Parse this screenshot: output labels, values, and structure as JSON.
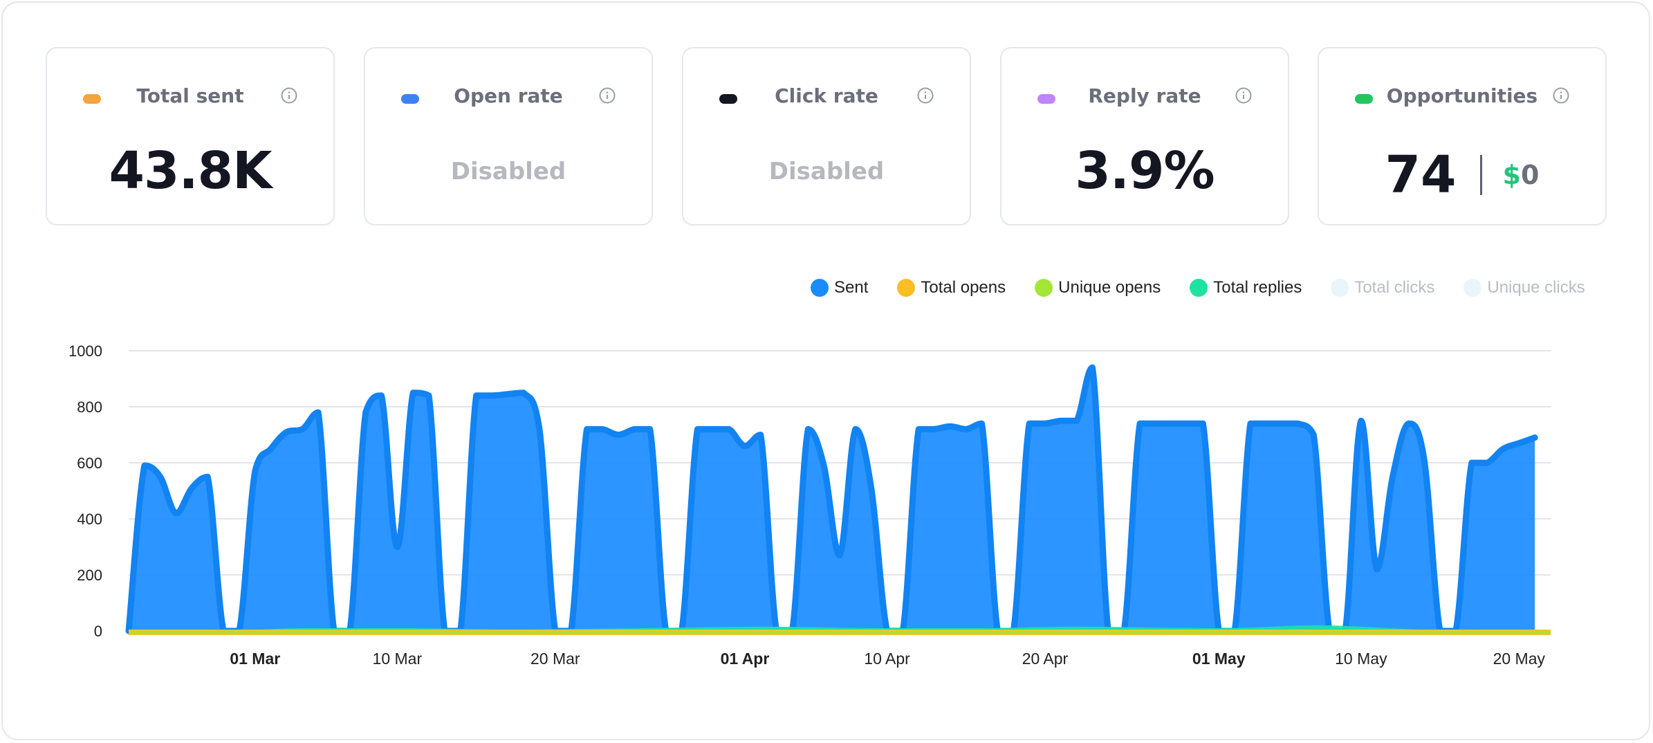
{
  "cards": [
    {
      "label": "Total sent",
      "value": "43.8K",
      "color": "#f5a33c",
      "state": "active"
    },
    {
      "label": "Open rate",
      "value": "Disabled",
      "color": "#3b82f6",
      "state": "disabled"
    },
    {
      "label": "Click rate",
      "value": "Disabled",
      "color": "#141722",
      "state": "disabled"
    },
    {
      "label": "Reply rate",
      "value": "3.9%",
      "color": "#c084fc",
      "state": "active"
    },
    {
      "label": "Opportunities",
      "value": "74",
      "currency": "$",
      "amount": "0",
      "color": "#22c55e",
      "state": "active"
    }
  ],
  "info_icon": "info-icon",
  "chart_data": {
    "type": "area",
    "legend_position": "top-right",
    "legend": [
      {
        "name": "Sent",
        "color": "#1a8cff",
        "visible": true
      },
      {
        "name": "Total opens",
        "color": "#fbbf24",
        "visible": true
      },
      {
        "name": "Unique opens",
        "color": "#a3e635",
        "visible": true
      },
      {
        "name": "Total replies",
        "color": "#1ee3a0",
        "visible": true
      },
      {
        "name": "Total clicks",
        "color": "#e8f6fb",
        "visible": false
      },
      {
        "name": "Unique clicks",
        "color": "#e8f6fb",
        "visible": false
      }
    ],
    "ylim": [
      0,
      1000
    ],
    "yticks": [
      0,
      200,
      400,
      600,
      800,
      1000
    ],
    "xlim": [
      "2024-02-22",
      "2024-05-22"
    ],
    "xticks": [
      {
        "date": "2024-03-01",
        "label": "01 Mar",
        "bold": true
      },
      {
        "date": "2024-03-10",
        "label": "10 Mar",
        "bold": false
      },
      {
        "date": "2024-03-20",
        "label": "20 Mar",
        "bold": false
      },
      {
        "date": "2024-04-01",
        "label": "01 Apr",
        "bold": true
      },
      {
        "date": "2024-04-10",
        "label": "10 Apr",
        "bold": false
      },
      {
        "date": "2024-04-20",
        "label": "20 Apr",
        "bold": false
      },
      {
        "date": "2024-05-01",
        "label": "01 May",
        "bold": true
      },
      {
        "date": "2024-05-10",
        "label": "10 May",
        "bold": false
      },
      {
        "date": "2024-05-20",
        "label": "20 May",
        "bold": false
      }
    ],
    "grid": true,
    "series": [
      {
        "name": "Sent",
        "color": "#1a8cff",
        "values": [
          [
            "2024-02-22",
            0
          ],
          [
            "2024-02-23",
            590
          ],
          [
            "2024-02-24",
            550
          ],
          [
            "2024-02-25",
            420
          ],
          [
            "2024-02-26",
            510
          ],
          [
            "2024-02-27",
            550
          ],
          [
            "2024-02-28",
            0
          ],
          [
            "2024-02-29",
            0
          ],
          [
            "2024-03-01",
            570
          ],
          [
            "2024-03-02",
            650
          ],
          [
            "2024-03-03",
            710
          ],
          [
            "2024-03-04",
            720
          ],
          [
            "2024-03-05",
            780
          ],
          [
            "2024-03-06",
            0
          ],
          [
            "2024-03-07",
            0
          ],
          [
            "2024-03-08",
            780
          ],
          [
            "2024-03-09",
            840
          ],
          [
            "2024-03-10",
            300
          ],
          [
            "2024-03-11",
            850
          ],
          [
            "2024-03-12",
            840
          ],
          [
            "2024-03-13",
            0
          ],
          [
            "2024-03-14",
            0
          ],
          [
            "2024-03-15",
            840
          ],
          [
            "2024-03-16",
            840
          ],
          [
            "2024-03-17",
            845
          ],
          [
            "2024-03-18",
            850
          ],
          [
            "2024-03-19",
            720
          ],
          [
            "2024-03-20",
            0
          ],
          [
            "2024-03-21",
            0
          ],
          [
            "2024-03-22",
            720
          ],
          [
            "2024-03-23",
            720
          ],
          [
            "2024-03-24",
            700
          ],
          [
            "2024-03-25",
            720
          ],
          [
            "2024-03-26",
            720
          ],
          [
            "2024-03-27",
            0
          ],
          [
            "2024-03-28",
            0
          ],
          [
            "2024-03-29",
            720
          ],
          [
            "2024-03-30",
            720
          ],
          [
            "2024-03-31",
            720
          ],
          [
            "2024-04-01",
            660
          ],
          [
            "2024-04-02",
            700
          ],
          [
            "2024-04-03",
            0
          ],
          [
            "2024-04-04",
            0
          ],
          [
            "2024-04-05",
            720
          ],
          [
            "2024-04-06",
            590
          ],
          [
            "2024-04-07",
            270
          ],
          [
            "2024-04-08",
            720
          ],
          [
            "2024-04-09",
            510
          ],
          [
            "2024-04-10",
            0
          ],
          [
            "2024-04-11",
            0
          ],
          [
            "2024-04-12",
            720
          ],
          [
            "2024-04-13",
            720
          ],
          [
            "2024-04-14",
            730
          ],
          [
            "2024-04-15",
            720
          ],
          [
            "2024-04-16",
            740
          ],
          [
            "2024-04-17",
            0
          ],
          [
            "2024-04-18",
            0
          ],
          [
            "2024-04-19",
            740
          ],
          [
            "2024-04-20",
            740
          ],
          [
            "2024-04-21",
            750
          ],
          [
            "2024-04-22",
            750
          ],
          [
            "2024-04-23",
            940
          ],
          [
            "2024-04-24",
            0
          ],
          [
            "2024-04-25",
            0
          ],
          [
            "2024-04-26",
            740
          ],
          [
            "2024-04-27",
            740
          ],
          [
            "2024-04-28",
            740
          ],
          [
            "2024-04-29",
            740
          ],
          [
            "2024-04-30",
            740
          ],
          [
            "2024-05-01",
            0
          ],
          [
            "2024-05-02",
            0
          ],
          [
            "2024-05-03",
            740
          ],
          [
            "2024-05-04",
            740
          ],
          [
            "2024-05-05",
            740
          ],
          [
            "2024-05-06",
            740
          ],
          [
            "2024-05-07",
            700
          ],
          [
            "2024-05-08",
            0
          ],
          [
            "2024-05-09",
            0
          ],
          [
            "2024-05-10",
            750
          ],
          [
            "2024-05-11",
            220
          ],
          [
            "2024-05-12",
            550
          ],
          [
            "2024-05-13",
            740
          ],
          [
            "2024-05-14",
            610
          ],
          [
            "2024-05-15",
            0
          ],
          [
            "2024-05-16",
            0
          ],
          [
            "2024-05-17",
            600
          ],
          [
            "2024-05-18",
            600
          ],
          [
            "2024-05-19",
            650
          ],
          [
            "2024-05-20",
            670
          ],
          [
            "2024-05-21",
            690
          ]
        ]
      },
      {
        "name": "Total opens",
        "color": "#fbbf24",
        "values": [
          [
            "2024-02-22",
            0
          ],
          [
            "2024-05-21",
            0
          ]
        ]
      },
      {
        "name": "Unique opens",
        "color": "#a3e635",
        "values": [
          [
            "2024-02-22",
            0
          ],
          [
            "2024-05-21",
            0
          ]
        ]
      },
      {
        "name": "Total replies",
        "color": "#1ee3a0",
        "values": [
          [
            "2024-02-22",
            0
          ],
          [
            "2024-03-01",
            5
          ],
          [
            "2024-03-04",
            10
          ],
          [
            "2024-03-11",
            10
          ],
          [
            "2024-03-18",
            5
          ],
          [
            "2024-04-02",
            15
          ],
          [
            "2024-04-09",
            10
          ],
          [
            "2024-04-16",
            10
          ],
          [
            "2024-04-22",
            15
          ],
          [
            "2024-05-01",
            10
          ],
          [
            "2024-05-07",
            20
          ],
          [
            "2024-05-10",
            15
          ],
          [
            "2024-05-14",
            5
          ],
          [
            "2024-05-21",
            0
          ]
        ]
      }
    ]
  }
}
